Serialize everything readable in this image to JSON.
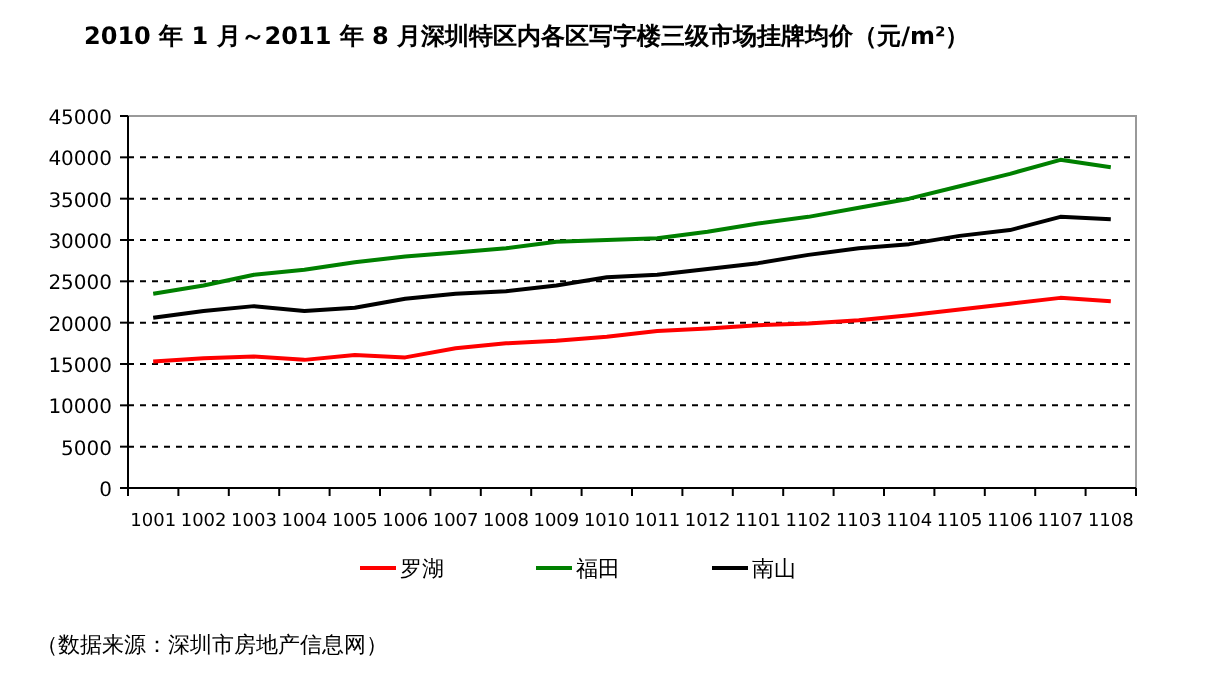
{
  "chart_data": {
    "type": "line",
    "title": "2010 年 1 月～2011 年 8 月深圳特区内各区写字楼三级市场挂牌均价（元/m²）",
    "categories": [
      "1001",
      "1002",
      "1003",
      "1004",
      "1005",
      "1006",
      "1007",
      "1008",
      "1009",
      "1010",
      "1011",
      "1012",
      "1101",
      "1102",
      "1103",
      "1104",
      "1105",
      "1106",
      "1107",
      "1108"
    ],
    "series": [
      {
        "name": "罗湖",
        "color": "#ff0000",
        "values": [
          15300,
          15700,
          15900,
          15500,
          16100,
          15800,
          16900,
          17500,
          17800,
          18300,
          19000,
          19300,
          19700,
          19900,
          20300,
          20900,
          21600,
          22300,
          23000,
          22600
        ]
      },
      {
        "name": "福田",
        "color": "#008000",
        "values": [
          23500,
          24500,
          25800,
          26400,
          27300,
          28000,
          28500,
          29000,
          29800,
          30000,
          30200,
          31000,
          32000,
          32800,
          33900,
          35000,
          36500,
          38000,
          39700,
          38800
        ]
      },
      {
        "name": "南山",
        "color": "#000000",
        "values": [
          20600,
          21400,
          22000,
          21400,
          21800,
          22900,
          23500,
          23800,
          24500,
          25500,
          25800,
          26500,
          27200,
          28200,
          29000,
          29500,
          30500,
          31200,
          32800,
          32500
        ]
      }
    ],
    "ylim": [
      0,
      45000
    ],
    "yticks": [
      0,
      5000,
      10000,
      15000,
      20000,
      25000,
      30000,
      35000,
      40000,
      45000
    ],
    "grid": "y",
    "legend": "bottom",
    "marker": "none",
    "line_style": "solid",
    "annotations": [
      "（数据来源：深圳市房地产信息网）"
    ]
  }
}
